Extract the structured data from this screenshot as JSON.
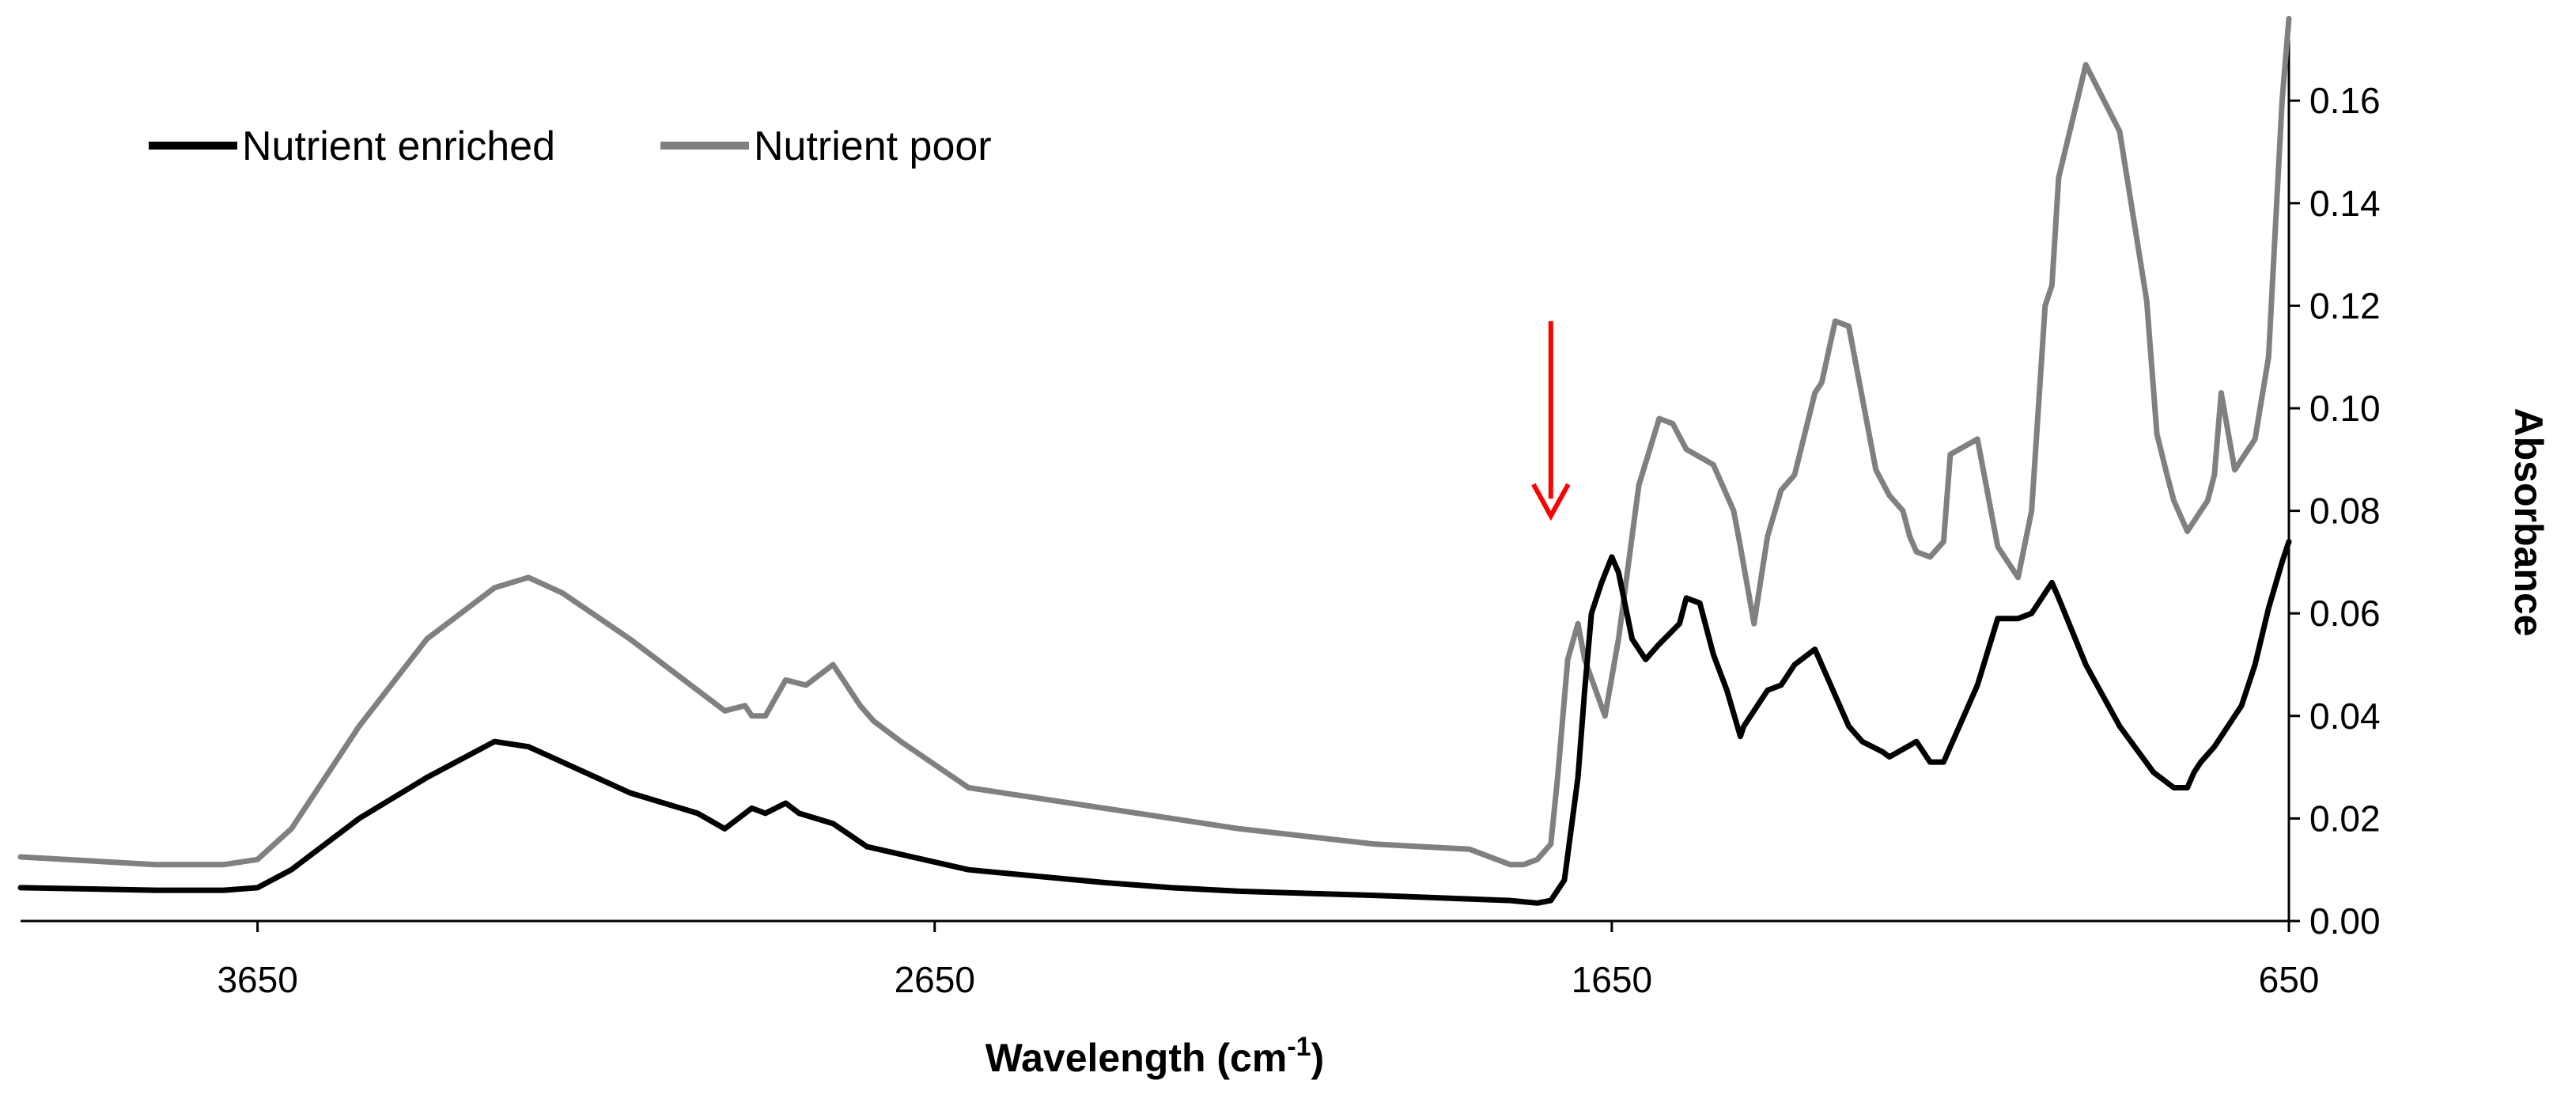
{
  "chart_data": {
    "type": "line",
    "title": "",
    "xlabel": "Wavelength (cm",
    "xlabel_superscript": "-1",
    "xlabel_suffix": ")",
    "ylabel": "Absorbance",
    "xlim": [
      4000,
      650
    ],
    "ylim": [
      0,
      0.175
    ],
    "x_ticks": [
      3650,
      2650,
      1650,
      650
    ],
    "x_tick_labels": [
      "3650",
      "2650",
      "1650",
      "650"
    ],
    "y_ticks": [
      0,
      0.02,
      0.04,
      0.06,
      0.08,
      0.1,
      0.12,
      0.14,
      0.16
    ],
    "y_tick_labels": [
      "0.00",
      "0.02",
      "0.04",
      "0.06",
      "0.08",
      "0.10",
      "0.12",
      "0.14",
      "0.16"
    ],
    "grid": false,
    "legend_position": "top-left",
    "annotation": {
      "type": "arrow",
      "color": "#ff0000",
      "x": 1740,
      "y_from": 0.117,
      "y_to": 0.079
    },
    "series": [
      {
        "name": "Nutrient enriched",
        "color": "#000000",
        "x": [
          4000,
          3800,
          3700,
          3650,
          3600,
          3500,
          3400,
          3300,
          3250,
          3200,
          3100,
          3000,
          2960,
          2920,
          2900,
          2870,
          2850,
          2800,
          2750,
          2600,
          2400,
          2300,
          2200,
          2000,
          1800,
          1760,
          1740,
          1720,
          1700,
          1690,
          1680,
          1665,
          1650,
          1640,
          1620,
          1600,
          1580,
          1550,
          1540,
          1520,
          1500,
          1480,
          1460,
          1455,
          1420,
          1400,
          1380,
          1350,
          1340,
          1300,
          1280,
          1250,
          1240,
          1200,
          1180,
          1160,
          1110,
          1080,
          1050,
          1030,
          1000,
          990,
          950,
          900,
          850,
          820,
          800,
          790,
          780,
          760,
          750,
          720,
          700,
          680,
          660,
          650
        ],
        "y": [
          0.0065,
          0.006,
          0.006,
          0.0065,
          0.01,
          0.02,
          0.028,
          0.035,
          0.034,
          0.031,
          0.025,
          0.021,
          0.018,
          0.022,
          0.021,
          0.023,
          0.021,
          0.019,
          0.0145,
          0.01,
          0.0075,
          0.0065,
          0.0058,
          0.005,
          0.004,
          0.0035,
          0.004,
          0.008,
          0.028,
          0.045,
          0.06,
          0.066,
          0.071,
          0.068,
          0.055,
          0.051,
          0.054,
          0.058,
          0.063,
          0.062,
          0.052,
          0.045,
          0.036,
          0.038,
          0.045,
          0.046,
          0.05,
          0.053,
          0.05,
          0.038,
          0.035,
          0.033,
          0.032,
          0.035,
          0.031,
          0.031,
          0.046,
          0.059,
          0.059,
          0.06,
          0.066,
          0.063,
          0.05,
          0.038,
          0.029,
          0.026,
          0.026,
          0.029,
          0.031,
          0.034,
          0.036,
          0.042,
          0.05,
          0.061,
          0.07,
          0.074
        ]
      },
      {
        "name": "Nutrient poor",
        "color": "#808080",
        "x": [
          4000,
          3800,
          3700,
          3650,
          3600,
          3500,
          3400,
          3300,
          3250,
          3200,
          3100,
          3000,
          2960,
          2930,
          2920,
          2900,
          2870,
          2840,
          2800,
          2760,
          2740,
          2700,
          2600,
          2400,
          2200,
          2000,
          1860,
          1800,
          1780,
          1760,
          1740,
          1730,
          1715,
          1700,
          1690,
          1660,
          1640,
          1610,
          1580,
          1560,
          1540,
          1500,
          1470,
          1460,
          1440,
          1420,
          1400,
          1380,
          1350,
          1340,
          1320,
          1300,
          1260,
          1240,
          1220,
          1210,
          1200,
          1180,
          1160,
          1150,
          1110,
          1080,
          1050,
          1030,
          1010,
          1000,
          990,
          950,
          900,
          860,
          845,
          830,
          820,
          800,
          780,
          770,
          760,
          750,
          730,
          700,
          680,
          660,
          650
        ],
        "y": [
          0.0125,
          0.011,
          0.011,
          0.012,
          0.018,
          0.038,
          0.055,
          0.065,
          0.067,
          0.064,
          0.055,
          0.045,
          0.041,
          0.042,
          0.04,
          0.04,
          0.047,
          0.046,
          0.05,
          0.042,
          0.039,
          0.035,
          0.026,
          0.022,
          0.018,
          0.015,
          0.014,
          0.011,
          0.011,
          0.012,
          0.015,
          0.028,
          0.051,
          0.058,
          0.051,
          0.04,
          0.055,
          0.085,
          0.098,
          0.097,
          0.092,
          0.089,
          0.08,
          0.073,
          0.058,
          0.075,
          0.084,
          0.087,
          0.103,
          0.105,
          0.117,
          0.116,
          0.088,
          0.083,
          0.08,
          0.075,
          0.072,
          0.071,
          0.074,
          0.091,
          0.094,
          0.073,
          0.067,
          0.08,
          0.12,
          0.124,
          0.145,
          0.167,
          0.154,
          0.121,
          0.095,
          0.087,
          0.082,
          0.076,
          0.08,
          0.082,
          0.087,
          0.103,
          0.088,
          0.094,
          0.11,
          0.16,
          0.176
        ]
      }
    ]
  }
}
